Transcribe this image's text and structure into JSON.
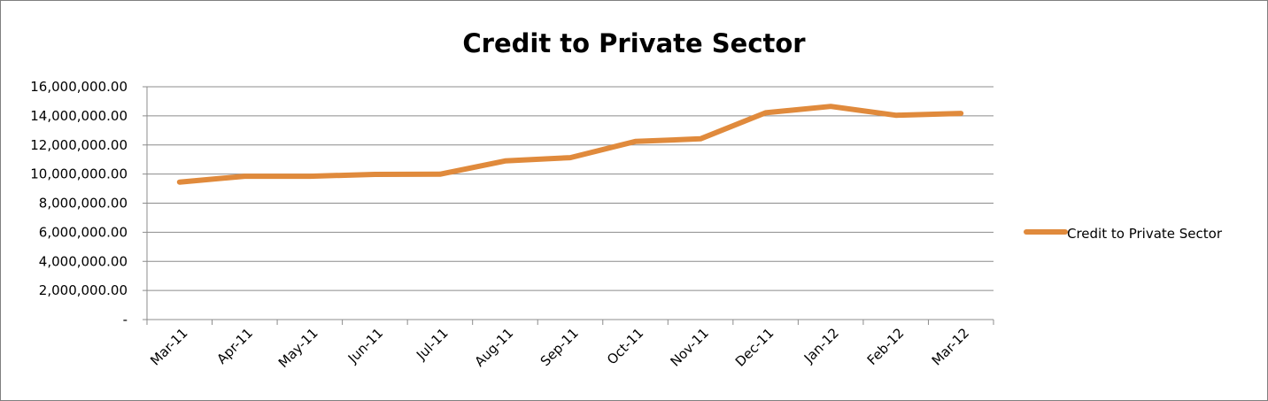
{
  "chart_data": {
    "type": "line",
    "title": "Credit to Private Sector",
    "xlabel": "",
    "ylabel": "",
    "categories": [
      "Mar-11",
      "Apr-11",
      "May-11",
      "Jun-11",
      "Jul-11",
      "Aug-11",
      "Sep-11",
      "Oct-11",
      "Nov-11",
      "Dec-11",
      "Jan-12",
      "Feb-12",
      "Mar-12"
    ],
    "series": [
      {
        "name": "Credit to Private Sector",
        "color": "#E08A3C",
        "values": [
          9450000,
          9850000,
          9850000,
          9980000,
          9990000,
          10900000,
          11130000,
          12240000,
          12420000,
          14210000,
          14650000,
          14040000,
          14170000
        ]
      }
    ],
    "ylim": [
      0,
      16000000
    ],
    "y_ticks": [
      0,
      2000000,
      4000000,
      6000000,
      8000000,
      10000000,
      12000000,
      14000000,
      16000000
    ],
    "y_tick_labels": [
      "-",
      "2,000,000.00",
      "4,000,000.00",
      "6,000,000.00",
      "8,000,000.00",
      "10,000,000.00",
      "12,000,000.00",
      "14,000,000.00",
      "16,000,000.00"
    ],
    "grid": true,
    "legend": {
      "position": "right"
    }
  }
}
